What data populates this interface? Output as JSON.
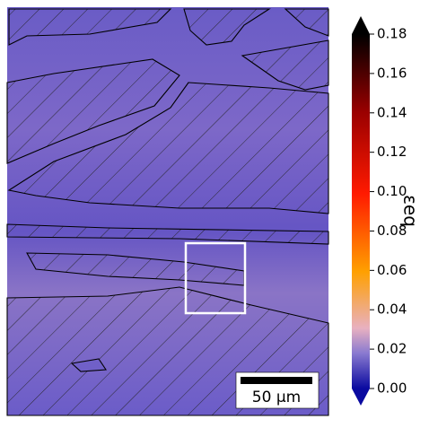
{
  "chart_data": {
    "type": "heatmap",
    "colorbar_label": "εeq",
    "colorbar_lim": [
      0,
      0.18
    ],
    "colorbar_ticks": [
      {
        "value": 0,
        "label": "0.00"
      },
      {
        "value": 0.02,
        "label": "0.02"
      },
      {
        "value": 0.04,
        "label": "0.04"
      },
      {
        "value": 0.06,
        "label": "0.06"
      },
      {
        "value": 0.08,
        "label": "0.08"
      },
      {
        "value": 0.1,
        "label": "0.10"
      },
      {
        "value": 0.12,
        "label": "0.12"
      },
      {
        "value": 0.14,
        "label": "0.14"
      },
      {
        "value": 0.16,
        "label": "0.16"
      },
      {
        "value": 0.18,
        "label": "0.18"
      }
    ],
    "scale_bar_label": "50 µm"
  }
}
